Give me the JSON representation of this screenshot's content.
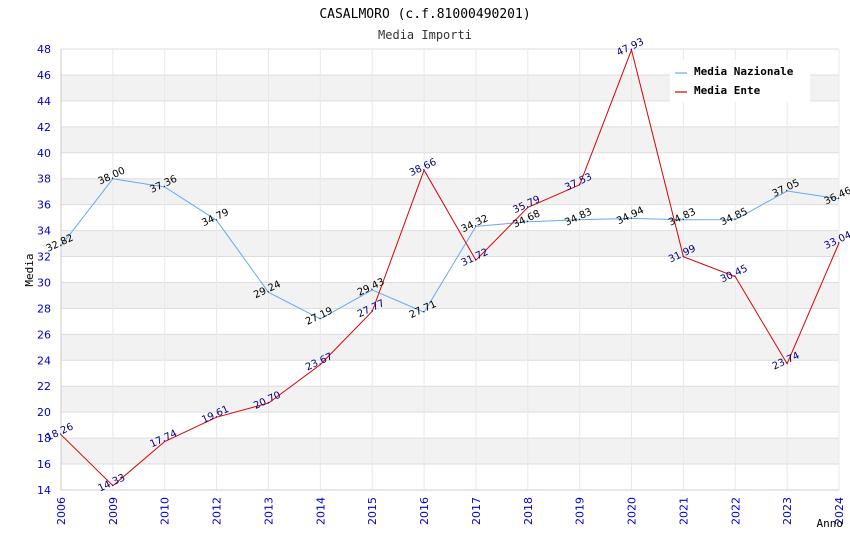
{
  "chart_data": {
    "type": "line",
    "title": "CASALMORO (c.f.81000490201)",
    "subtitle": "Media Importi",
    "xlabel": "Anno",
    "ylabel": "Media",
    "ylim": [
      14,
      48
    ],
    "yticks": [
      14,
      16,
      18,
      20,
      22,
      24,
      26,
      28,
      30,
      32,
      34,
      36,
      38,
      40,
      42,
      44,
      46,
      48
    ],
    "categories": [
      "2006",
      "2009",
      "2010",
      "2012",
      "2013",
      "2014",
      "2015",
      "2016",
      "2017",
      "2018",
      "2019",
      "2020",
      "2021",
      "2022",
      "2023",
      "2024"
    ],
    "series": [
      {
        "name": "Media Nazionale",
        "color": "#66aaee",
        "values": [
          32.82,
          38.0,
          37.36,
          34.79,
          29.24,
          27.19,
          29.43,
          27.71,
          34.32,
          34.68,
          34.83,
          34.94,
          34.83,
          34.85,
          37.05,
          36.46
        ],
        "labels": [
          "32.82",
          "38.00",
          "37.36",
          "34.79",
          "29.24",
          "27.19",
          "29.43",
          "27.71",
          "34.32",
          "34.68",
          "34.83",
          "34.94",
          "34.83",
          "34.85",
          "37.05",
          "36.46"
        ]
      },
      {
        "name": "Media Ente",
        "color": "#dd0000",
        "values": [
          18.26,
          14.33,
          17.74,
          19.61,
          20.7,
          23.67,
          27.77,
          38.66,
          31.72,
          35.79,
          37.53,
          47.93,
          31.99,
          30.45,
          23.74,
          33.04
        ],
        "labels": [
          "18.26",
          "14.33",
          "17.74",
          "19.61",
          "20.70",
          "23.67",
          "27.77",
          "38.66",
          "31.72",
          "35.79",
          "37.53",
          "47.93",
          "31.99",
          "30.45",
          "23.74",
          "33.04"
        ]
      }
    ],
    "grid": true,
    "legend": "top-right"
  }
}
